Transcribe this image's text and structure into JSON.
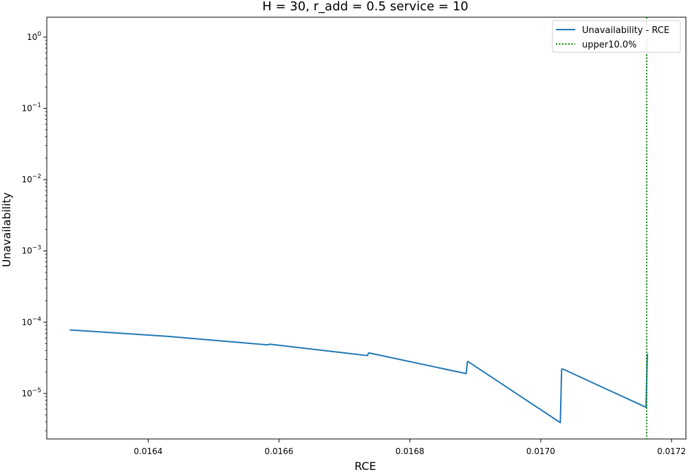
{
  "chart_data": {
    "type": "line",
    "title": "H = 30, r_add = 0.5 service = 10",
    "xlabel": "RCE",
    "ylabel": "Unavailability",
    "yscale": "log",
    "xlim": [
      0.016245,
      0.017222
    ],
    "ylim": [
      2.3e-06,
      1.9
    ],
    "xticks": [
      {
        "value": 0.0164,
        "label": "0.0164"
      },
      {
        "value": 0.0166,
        "label": "0.0166"
      },
      {
        "value": 0.0168,
        "label": "0.0168"
      },
      {
        "value": 0.017,
        "label": "0.0170"
      },
      {
        "value": 0.0172,
        "label": "0.0172"
      }
    ],
    "yticks": [
      {
        "value": 1e-05,
        "base": "10",
        "exp": "−5"
      },
      {
        "value": 0.0001,
        "base": "10",
        "exp": "−4"
      },
      {
        "value": 0.001,
        "base": "10",
        "exp": "−3"
      },
      {
        "value": 0.01,
        "base": "10",
        "exp": "−2"
      },
      {
        "value": 0.1,
        "base": "10",
        "exp": "−1"
      },
      {
        "value": 1,
        "base": "10",
        "exp": "0"
      }
    ],
    "grid": false,
    "legend_position": "top-right",
    "series": [
      {
        "name": "Unavailability - RCE",
        "color": "#1f77b4",
        "style": "solid",
        "x": [
          0.01628,
          0.016432,
          0.016583,
          0.016585,
          0.016587,
          0.016735,
          0.016737,
          0.016738,
          0.016886,
          0.016888,
          0.016889,
          0.01703,
          0.017032,
          0.017034,
          0.017161,
          0.017163,
          0.017164
        ],
        "y": [
          7.8e-05,
          6.3e-05,
          4.8e-05,
          4.9e-05,
          4.9e-05,
          3.4e-05,
          3.7e-05,
          3.7e-05,
          1.9e-05,
          2.8e-05,
          2.8e-05,
          3.9e-06,
          2.2e-05,
          2.2e-05,
          6.4e-06,
          3.5e-05,
          3.6e-05
        ]
      },
      {
        "name": "upper10.0%",
        "color": "#008000",
        "style": "dotted",
        "type": "vline",
        "x": [
          0.017162
        ]
      }
    ]
  }
}
